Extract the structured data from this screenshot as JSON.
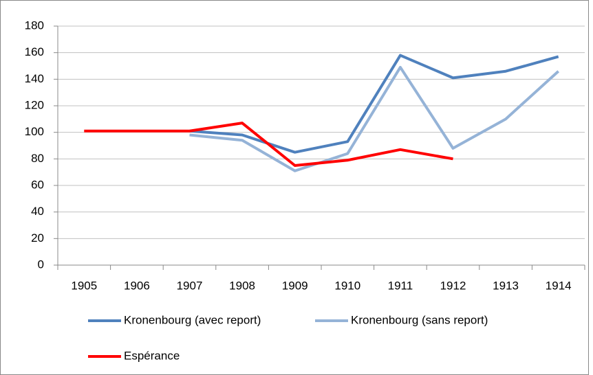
{
  "chart_data": {
    "type": "line",
    "categories": [
      "1905",
      "1906",
      "1907",
      "1908",
      "1909",
      "1910",
      "1911",
      "1912",
      "1913",
      "1914"
    ],
    "series": [
      {
        "name": "Kronenbourg (avec report)",
        "color": "#4f81bd",
        "values": [
          null,
          null,
          101,
          98,
          85,
          93,
          158,
          141,
          146,
          157
        ]
      },
      {
        "name": "Kronenbourg (sans report)",
        "color": "#95b3d7",
        "values": [
          null,
          null,
          98,
          94,
          71,
          84,
          149,
          88,
          110,
          146
        ]
      },
      {
        "name": "Espérance",
        "color": "#ff0000",
        "values": [
          101,
          101,
          101,
          107,
          75,
          79,
          87,
          80,
          null,
          null
        ]
      }
    ],
    "ylim": [
      0,
      180
    ],
    "yticks": [
      0,
      20,
      40,
      60,
      80,
      100,
      120,
      140,
      160,
      180
    ],
    "grid": true
  }
}
